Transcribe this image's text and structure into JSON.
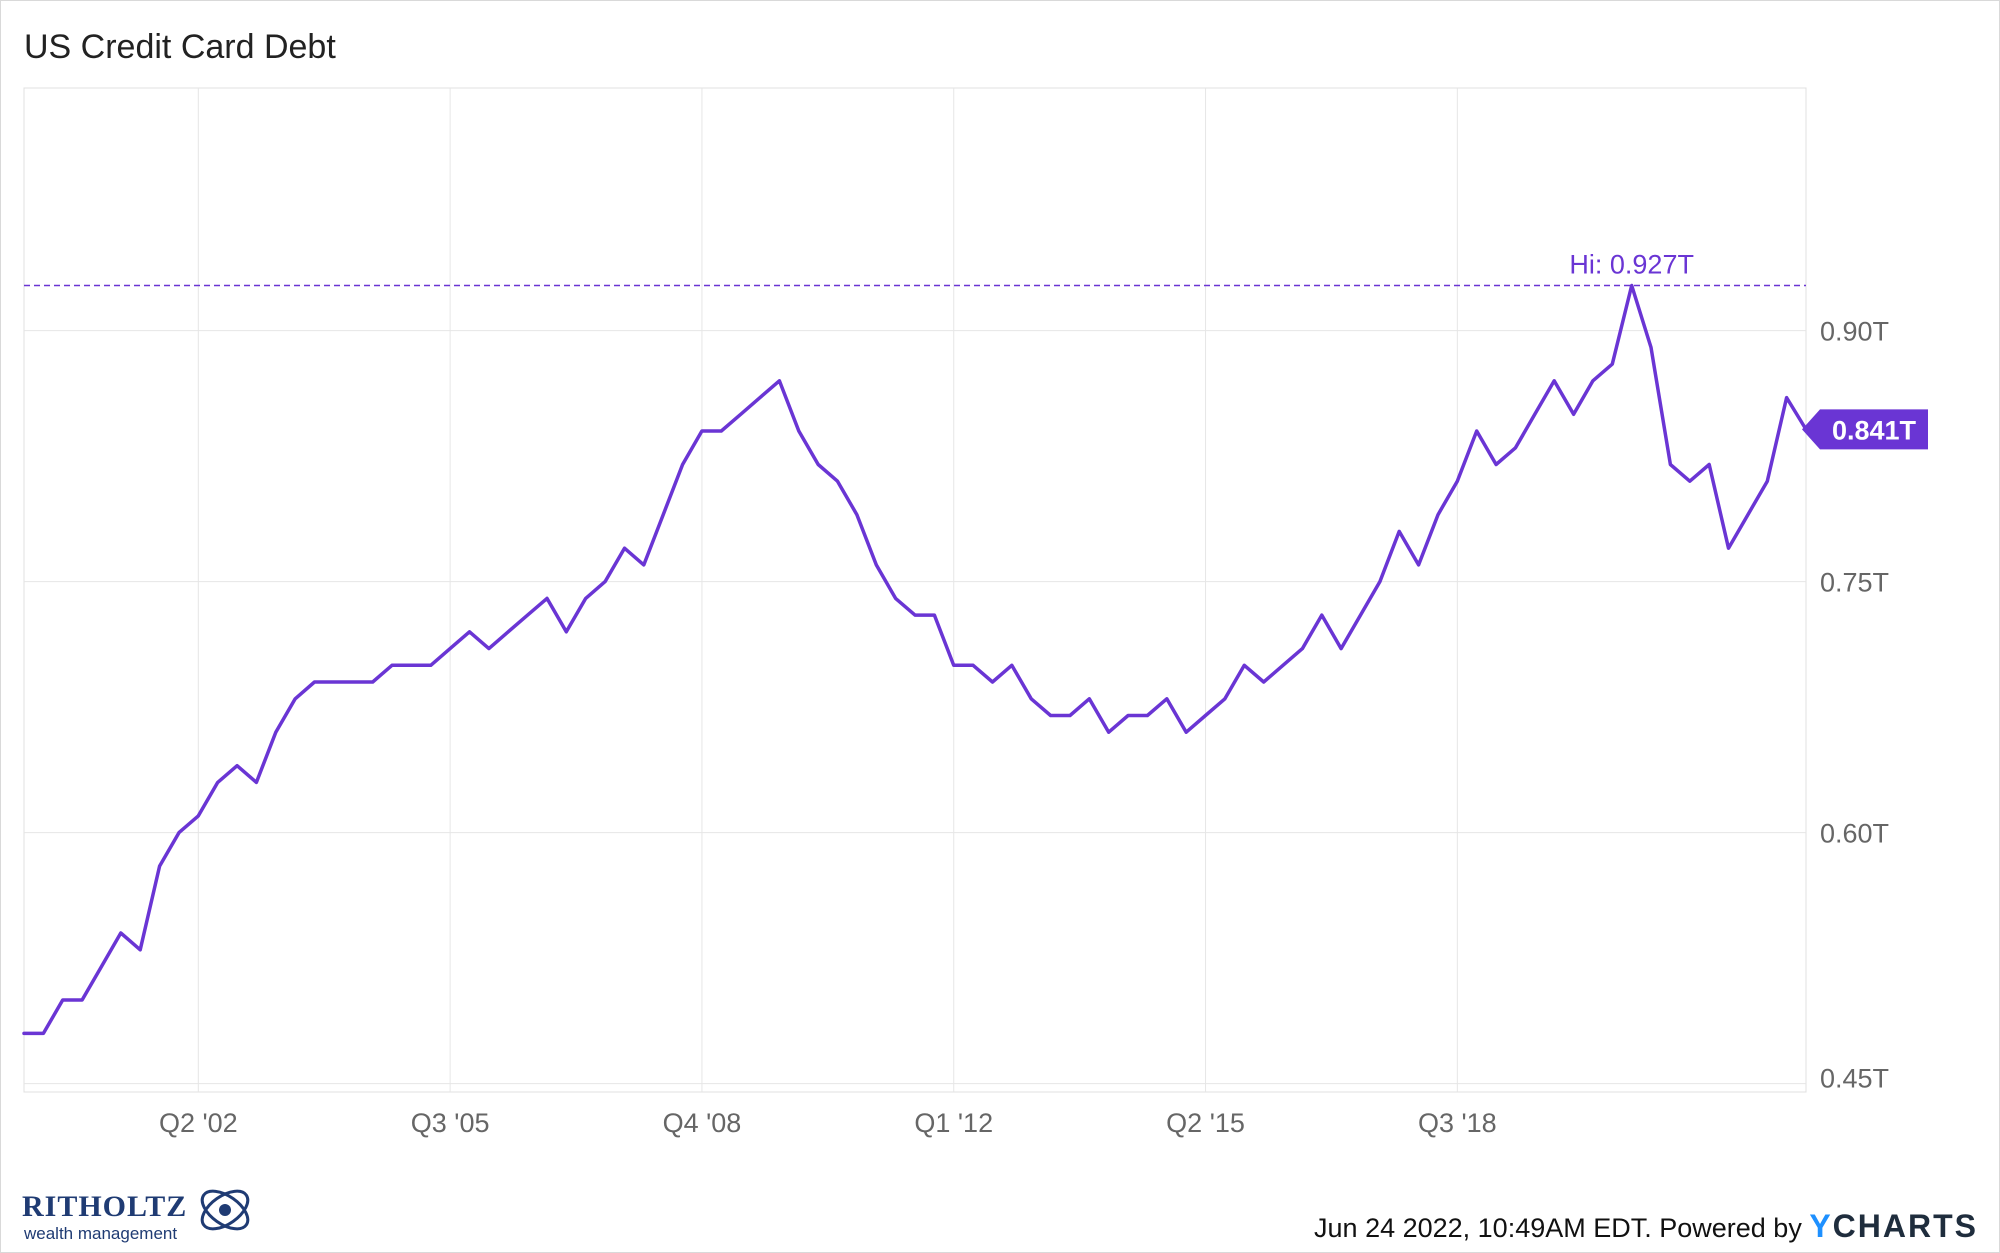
{
  "title": "US Credit Card Debt",
  "footer": {
    "timestamp_text": "Jun 24 2022, 10:49AM EDT. Powered by ",
    "brand": "YCHARTS",
    "brand_first": "Y",
    "brand_rest": "CHARTS"
  },
  "logo": {
    "name": "RITHOLTZ",
    "sub": "wealth management"
  },
  "colors": {
    "line": "#6a35d4",
    "grid": "#e6e6e6",
    "axis_text": "#666666",
    "hi_line": "#6a35d4",
    "label_bg": "#6a35d4",
    "label_text": "#ffffff"
  },
  "chart_data": {
    "type": "line",
    "title": "US Credit Card Debt",
    "xlabel": "",
    "ylabel": "",
    "x_ticks": [
      "Q2 '02",
      "Q3 '05",
      "Q4 '08",
      "Q1 '12",
      "Q2 '15",
      "Q3 '18"
    ],
    "y_ticks": [
      "0.45T",
      "0.60T",
      "0.75T",
      "0.90T"
    ],
    "y_tick_values": [
      0.45,
      0.6,
      0.75,
      0.9
    ],
    "ylim": [
      0.445,
      1.045
    ],
    "grid": true,
    "x_start_quarter": "Q1 '00",
    "series": [
      {
        "values": [
          0.48,
          0.48,
          0.5,
          0.5,
          0.52,
          0.54,
          0.53,
          0.58,
          0.6,
          0.61,
          0.63,
          0.64,
          0.63,
          0.66,
          0.68,
          0.69,
          0.69,
          0.69,
          0.69,
          0.7,
          0.7,
          0.7,
          0.71,
          0.72,
          0.71,
          0.72,
          0.73,
          0.74,
          0.72,
          0.74,
          0.75,
          0.77,
          0.76,
          0.79,
          0.82,
          0.84,
          0.84,
          0.85,
          0.86,
          0.87,
          0.84,
          0.82,
          0.81,
          0.79,
          0.76,
          0.74,
          0.73,
          0.73,
          0.7,
          0.7,
          0.69,
          0.7,
          0.68,
          0.67,
          0.67,
          0.68,
          0.66,
          0.67,
          0.67,
          0.68,
          0.66,
          0.67,
          0.68,
          0.7,
          0.69,
          0.7,
          0.71,
          0.73,
          0.71,
          0.73,
          0.75,
          0.78,
          0.76,
          0.79,
          0.81,
          0.84,
          0.82,
          0.83,
          0.85,
          0.87,
          0.85,
          0.87,
          0.88,
          0.927,
          0.89,
          0.82,
          0.81,
          0.82,
          0.77,
          0.79,
          0.81,
          0.86,
          0.841
        ]
      }
    ],
    "annotations": {
      "high_label": "Hi: 0.927T",
      "high_value": 0.927,
      "last_label": "0.841T",
      "last_value": 0.841
    }
  }
}
